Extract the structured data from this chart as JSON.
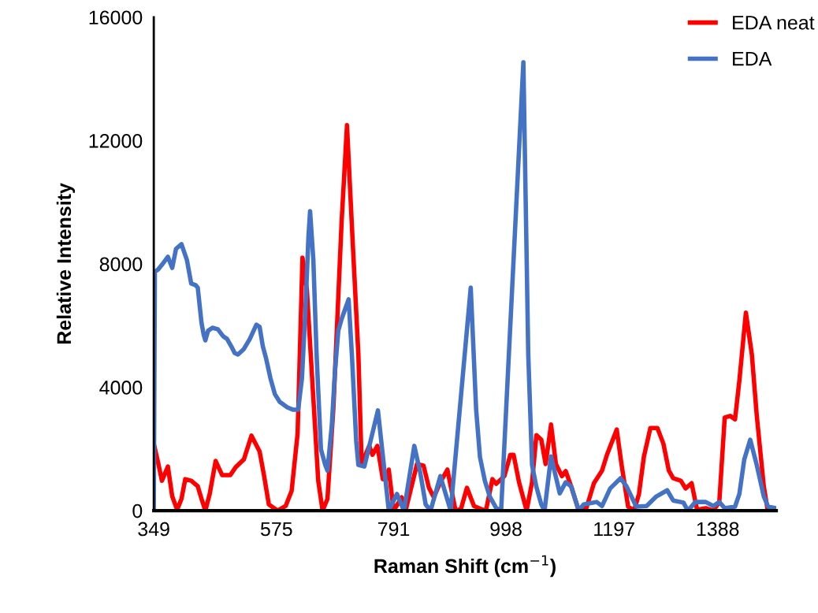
{
  "chart_data": {
    "type": "line",
    "xlabel": "Raman Shift (cm$^{−1}$)",
    "ylabel": "Relative Intensity",
    "xlim": [
      349,
      1496
    ],
    "xticks": [
      349,
      575,
      791,
      998,
      1197,
      1388
    ],
    "ylim": [
      0,
      16000
    ],
    "yticks": [
      0,
      4000,
      8000,
      12000,
      16000
    ],
    "grid": false,
    "legend": "top right",
    "marker": "none",
    "line_style": "solid",
    "series": [
      {
        "name": "EDA neat",
        "color": "#ff0000",
        "x": [
          349,
          357,
          364,
          375,
          383,
          392,
          400,
          407,
          418,
          430,
          437,
          444,
          452,
          463,
          475,
          490,
          500,
          515,
          529,
          544,
          552,
          561,
          577,
          592,
          603,
          614,
          623,
          631,
          644,
          652,
          660,
          669,
          680,
          695,
          705,
          715,
          726,
          732,
          746,
          752,
          761,
          771,
          777,
          782,
          791,
          806,
          813,
          834,
          846,
          856,
          865,
          877,
          890,
          905,
          915,
          926,
          939,
          952,
          961,
          973,
          980,
          995,
          1006,
          1012,
          1022,
          1036,
          1046,
          1054,
          1063,
          1071,
          1081,
          1090,
          1101,
          1108,
          1118,
          1132,
          1139,
          1146,
          1160,
          1175,
          1184,
          1202,
          1211,
          1223,
          1234,
          1243,
          1252,
          1264,
          1277,
          1288,
          1298,
          1306,
          1320,
          1329,
          1340,
          1350,
          1366,
          1380,
          1391,
          1401,
          1411,
          1420,
          1428,
          1440,
          1451,
          1460,
          1473,
          1480
        ],
        "values": [
          2170,
          1560,
          970,
          1430,
          460,
          30,
          380,
          1020,
          970,
          790,
          380,
          0,
          540,
          1610,
          1150,
          1150,
          1410,
          1660,
          2430,
          1920,
          1150,
          200,
          0,
          150,
          640,
          2500,
          8200,
          7180,
          3350,
          970,
          0,
          380,
          3350,
          9330,
          12500,
          8890,
          5060,
          1510,
          2100,
          1810,
          2100,
          1020,
          1020,
          1330,
          0,
          430,
          0,
          1510,
          1460,
          740,
          430,
          920,
          1330,
          0,
          50,
          740,
          150,
          50,
          0,
          1020,
          870,
          1120,
          1810,
          1810,
          920,
          0,
          920,
          2450,
          2300,
          1510,
          2790,
          1510,
          1120,
          1280,
          790,
          0,
          130,
          80,
          890,
          1300,
          1810,
          2630,
          1480,
          130,
          0,
          540,
          1740,
          2680,
          2680,
          2170,
          1300,
          1050,
          970,
          720,
          890,
          30,
          80,
          0,
          280,
          3020,
          3070,
          2960,
          4220,
          6420,
          5060,
          3090,
          790,
          30
        ]
      },
      {
        "name": "EDA",
        "color": "#4472c4",
        "x": [
          349,
          351,
          357,
          364,
          375,
          383,
          390,
          400,
          410,
          418,
          426,
          430,
          437,
          441,
          444,
          449,
          457,
          467,
          477,
          484,
          492,
          498,
          504,
          515,
          526,
          538,
          544,
          550,
          556,
          564,
          572,
          581,
          595,
          606,
          615,
          622,
          628,
          634,
          637,
          643,
          649,
          657,
          665,
          669,
          677,
          683,
          689,
          695,
          708,
          714,
          722,
          726,
          737,
          762,
          782,
          797,
          810,
          829,
          840,
          850,
          859,
          877,
          896,
          933,
          943,
          950,
          959,
          968,
          980,
          989,
          1030,
          1039,
          1046,
          1054,
          1063,
          1069,
          1081,
          1097,
          1108,
          1118,
          1132,
          1141,
          1165,
          1175,
          1190,
          1209,
          1220,
          1238,
          1257,
          1275,
          1295,
          1306,
          1325,
          1333,
          1347,
          1366,
          1380,
          1391,
          1401,
          1420,
          1428,
          1437,
          1448,
          1460,
          1473,
          1481,
          1495
        ],
        "values": [
          0,
          7740,
          7820,
          7970,
          8230,
          7870,
          8490,
          8640,
          8130,
          7360,
          7310,
          7230,
          6080,
          5700,
          5520,
          5830,
          5930,
          5880,
          5650,
          5570,
          5320,
          5110,
          5060,
          5240,
          5570,
          6030,
          5960,
          5320,
          4930,
          4290,
          3780,
          3530,
          3350,
          3270,
          3270,
          4290,
          6340,
          8890,
          9710,
          8130,
          5060,
          1990,
          1480,
          1300,
          2760,
          4550,
          5830,
          6210,
          6850,
          5060,
          2250,
          1480,
          1430,
          3250,
          0,
          540,
          0,
          2100,
          1230,
          200,
          0,
          1120,
          0,
          7230,
          3270,
          1740,
          970,
          460,
          80,
          0,
          14540,
          5060,
          1480,
          770,
          200,
          0,
          1760,
          560,
          920,
          790,
          0,
          200,
          280,
          150,
          720,
          1050,
          790,
          130,
          150,
          460,
          660,
          330,
          260,
          0,
          280,
          280,
          150,
          280,
          80,
          130,
          540,
          1660,
          2300,
          1480,
          460,
          130,
          80
        ]
      }
    ]
  }
}
